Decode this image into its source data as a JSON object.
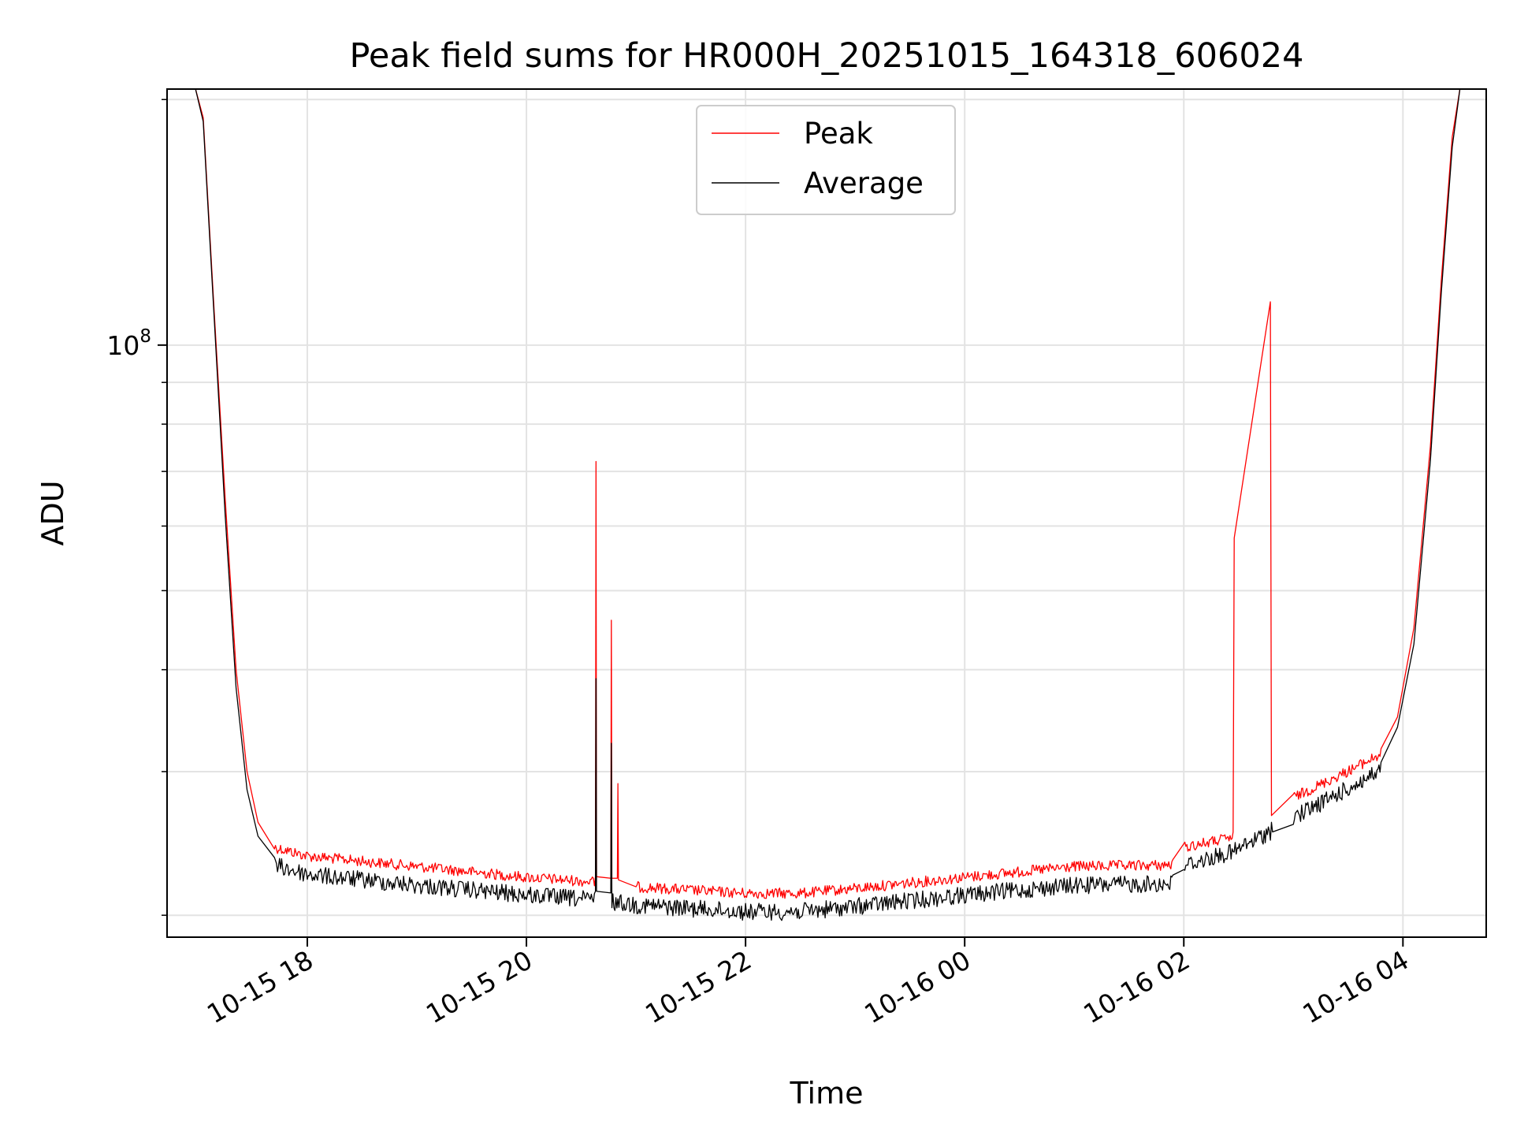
{
  "chart_data": {
    "type": "line",
    "title": "Peak field sums for HR000H_20251015_164318_606024",
    "xlabel": "Time",
    "ylabel": "ADU",
    "yscale": "log",
    "grid": true,
    "legend_position": "upper center",
    "x_units": "hours since 2025-10-15 00:00",
    "xlim": [
      16.72,
      28.76
    ],
    "ylim": [
      18800000,
      206000000
    ],
    "x_ticks": [
      {
        "x": 18,
        "label": "10-15 18"
      },
      {
        "x": 20,
        "label": "10-15 20"
      },
      {
        "x": 22,
        "label": "10-15 22"
      },
      {
        "x": 24,
        "label": "10-16 00"
      },
      {
        "x": 26,
        "label": "10-16 02"
      },
      {
        "x": 28,
        "label": "10-16 04"
      }
    ],
    "y_ticks": [
      {
        "y": 100000000,
        "label_base": "10",
        "label_exp": "8"
      }
    ],
    "y_minor_ticks": [
      20000000,
      30000000,
      40000000,
      50000000,
      60000000,
      70000000,
      80000000,
      90000000,
      200000000
    ],
    "series": [
      {
        "name": "Peak",
        "color": "#ff0000",
        "noise": 0.03,
        "points": [
          [
            16.72,
            206000000
          ],
          [
            16.98,
            206000000
          ],
          [
            17.05,
            190000000
          ],
          [
            17.15,
            110000000
          ],
          [
            17.25,
            65000000
          ],
          [
            17.35,
            40000000
          ],
          [
            17.45,
            30000000
          ],
          [
            17.55,
            26000000
          ],
          [
            17.7,
            24600000
          ],
          [
            18.0,
            24000000
          ],
          [
            19.0,
            23300000
          ],
          [
            20.0,
            22600000
          ],
          [
            20.63,
            22300000
          ],
          [
            20.635,
            72000000
          ],
          [
            20.64,
            22300000
          ],
          [
            20.77,
            22200000
          ],
          [
            20.775,
            46000000
          ],
          [
            20.78,
            22200000
          ],
          [
            20.83,
            22200000
          ],
          [
            20.835,
            29000000
          ],
          [
            20.84,
            22100000
          ],
          [
            21.0,
            22000000
          ],
          [
            22.0,
            21600000
          ],
          [
            22.5,
            21600000
          ],
          [
            23.0,
            21900000
          ],
          [
            24.0,
            22600000
          ],
          [
            25.0,
            23300000
          ],
          [
            25.9,
            23400000
          ],
          [
            26.0,
            24600000
          ],
          [
            26.45,
            25300000
          ],
          [
            26.46,
            58000000
          ],
          [
            26.79,
            113000000
          ],
          [
            26.8,
            26500000
          ],
          [
            27.0,
            28300000
          ],
          [
            27.5,
            30500000
          ],
          [
            27.8,
            32000000
          ],
          [
            27.95,
            35000000
          ],
          [
            28.1,
            45000000
          ],
          [
            28.25,
            75000000
          ],
          [
            28.35,
            120000000
          ],
          [
            28.45,
            180000000
          ],
          [
            28.52,
            206000000
          ],
          [
            28.76,
            206000000
          ]
        ]
      },
      {
        "name": "Average",
        "color": "#000000",
        "noise": 0.03,
        "points": [
          [
            16.72,
            206000000
          ],
          [
            16.98,
            206000000
          ],
          [
            17.05,
            188000000
          ],
          [
            17.15,
            108000000
          ],
          [
            17.25,
            62000000
          ],
          [
            17.35,
            38000000
          ],
          [
            17.45,
            28500000
          ],
          [
            17.55,
            25000000
          ],
          [
            17.7,
            23600000
          ],
          [
            18.0,
            23000000
          ],
          [
            19.0,
            22300000
          ],
          [
            20.0,
            21700000
          ],
          [
            20.63,
            21400000
          ],
          [
            20.635,
            39000000
          ],
          [
            20.64,
            21400000
          ],
          [
            20.77,
            21300000
          ],
          [
            20.775,
            32500000
          ],
          [
            20.78,
            21300000
          ],
          [
            21.0,
            21100000
          ],
          [
            22.0,
            20700000
          ],
          [
            22.5,
            20700000
          ],
          [
            23.0,
            21000000
          ],
          [
            24.0,
            21700000
          ],
          [
            25.0,
            22300000
          ],
          [
            25.9,
            22400000
          ],
          [
            26.0,
            23600000
          ],
          [
            26.45,
            24500000
          ],
          [
            26.8,
            26000000
          ],
          [
            26.81,
            25300000
          ],
          [
            27.0,
            27000000
          ],
          [
            27.5,
            29300000
          ],
          [
            27.8,
            30800000
          ],
          [
            27.95,
            34000000
          ],
          [
            28.1,
            43000000
          ],
          [
            28.25,
            72000000
          ],
          [
            28.35,
            116000000
          ],
          [
            28.45,
            175000000
          ],
          [
            28.52,
            206000000
          ],
          [
            28.76,
            206000000
          ]
        ]
      }
    ]
  }
}
